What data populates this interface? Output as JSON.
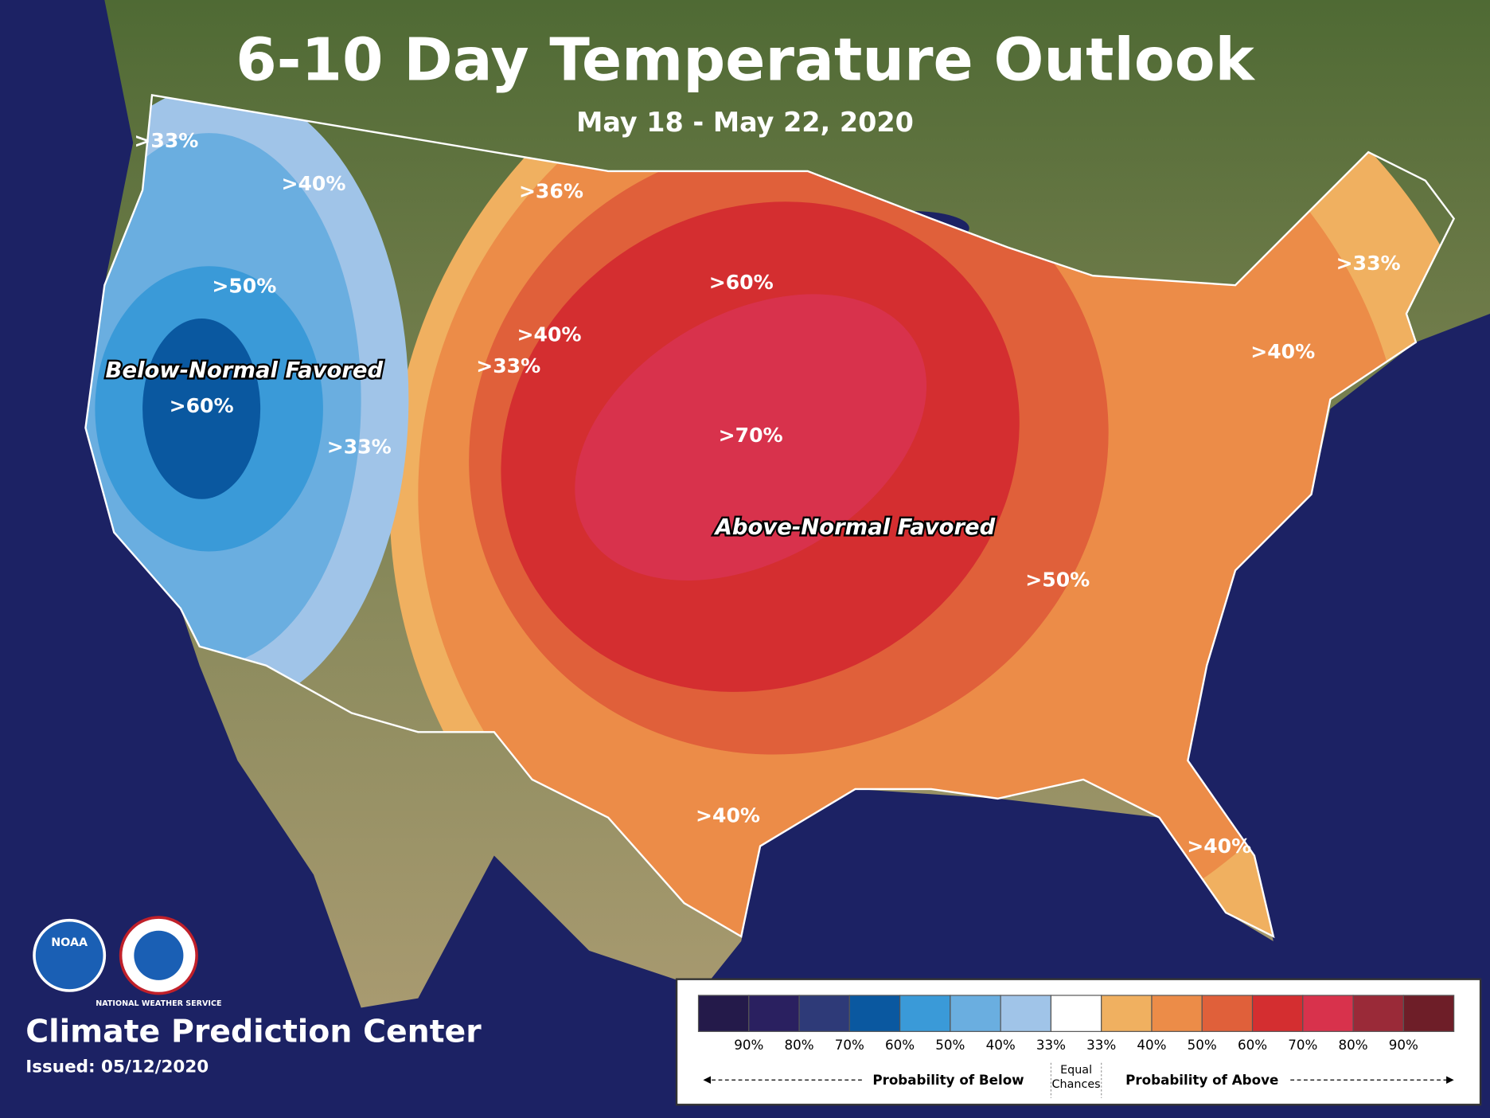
{
  "header": {
    "title": "6-10 Day Temperature Outlook",
    "subtitle": "May 18 - May 22, 2020"
  },
  "map": {
    "labels": [
      ">33%",
      ">40%",
      ">36%",
      ">50%",
      ">60%",
      ">40%",
      ">33%",
      ">33%",
      ">60%",
      ">70%",
      ">33%",
      ">40%",
      ">50%",
      ">40%",
      ">40%"
    ],
    "regions": [
      "Below-Normal Favored",
      "Above-Normal Favored"
    ]
  },
  "legend": {
    "colors": [
      "#241a4a",
      "#2a2060",
      "#2e3a78",
      "#0a58a0",
      "#3a9ad8",
      "#6aaee0",
      "#a0c4e8",
      "#ffffff",
      "#f0b060",
      "#ec8c48",
      "#e0603a",
      "#d42e30",
      "#d8324c",
      "#9a2a38",
      "#6e1e28"
    ],
    "levels": [
      "90%",
      "80%",
      "70%",
      "60%",
      "50%",
      "40%",
      "33%",
      "33%",
      "40%",
      "50%",
      "60%",
      "70%",
      "80%",
      "90%"
    ],
    "probability_below": "Probability of Below",
    "equal_chances": "Equal Chances",
    "probability_above": "Probability of Above"
  },
  "logos": [
    "NOAA",
    "NATIONAL WEATHER SERVICE"
  ],
  "footer": {
    "organization": "Climate Prediction Center",
    "issued": "Issued: 05/12/2020"
  }
}
